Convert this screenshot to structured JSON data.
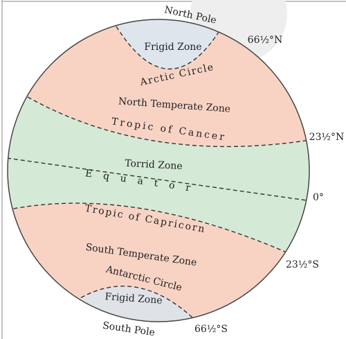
{
  "poles": [
    "North Pole",
    "South Pole"
  ],
  "zones": [
    "Frigid Zone",
    "North Temperate Zone",
    "Torrid Zone",
    "South Temperate Zone",
    "Frigid Zone"
  ],
  "lines": [
    "Arctic Circle",
    "Tropic of Cancer",
    "Equator",
    "Tropic of Capricorn",
    "Antarctic Circle"
  ],
  "latitudes": [
    "66½°N",
    "23½°N",
    "0°",
    "23½°S",
    "66½°S"
  ]
}
